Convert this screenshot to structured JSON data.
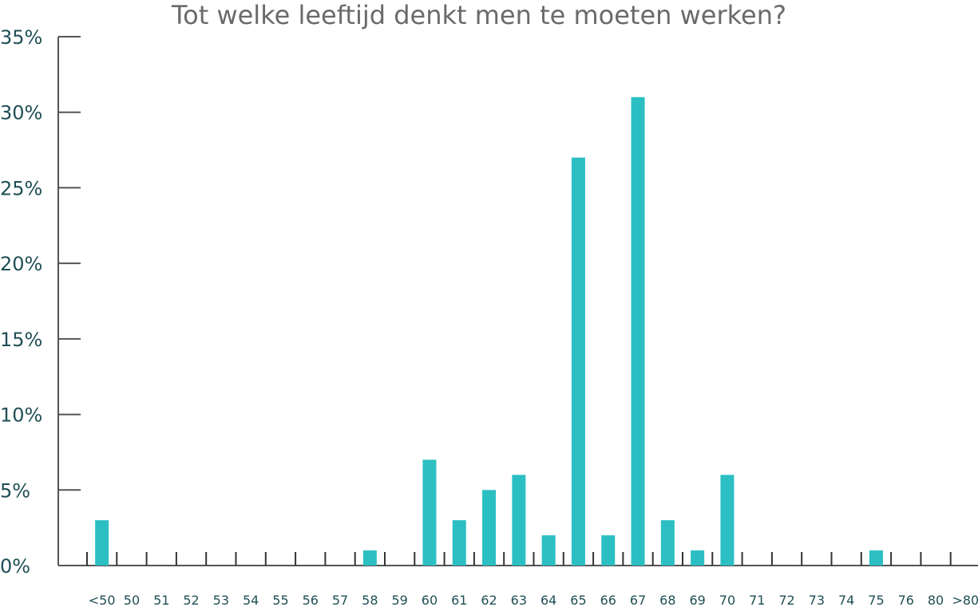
{
  "chart_data": {
    "type": "bar",
    "title": "Tot welke leeftijd denkt men te moeten werken?",
    "xlabel": "",
    "ylabel": "",
    "categories": [
      "<50",
      "50",
      "51",
      "52",
      "53",
      "54",
      "55",
      "56",
      "57",
      "58",
      "59",
      "60",
      "61",
      "62",
      "63",
      "64",
      "65",
      "66",
      "67",
      "68",
      "69",
      "70",
      "71",
      "72",
      "73",
      "74",
      "75",
      "76",
      "80",
      ">80"
    ],
    "values": [
      3,
      0,
      0,
      0,
      0,
      0,
      0,
      0,
      0,
      1,
      0,
      7,
      3,
      5,
      6,
      2,
      27,
      2,
      31,
      3,
      1,
      6,
      0,
      0,
      0,
      0,
      1,
      0,
      0,
      0
    ],
    "ylim": [
      0,
      35
    ],
    "yticks": [
      0,
      5,
      10,
      15,
      20,
      25,
      30,
      35
    ],
    "ytick_labels": [
      "0%",
      "5%",
      "10%",
      "15%",
      "20%",
      "25%",
      "30%",
      "35%"
    ],
    "grid": false,
    "legend": "none",
    "colors": {
      "bar": "#2bbfc3",
      "axis": "#555555",
      "title": "#6a6a6a",
      "labels": "#1f4f55"
    }
  }
}
